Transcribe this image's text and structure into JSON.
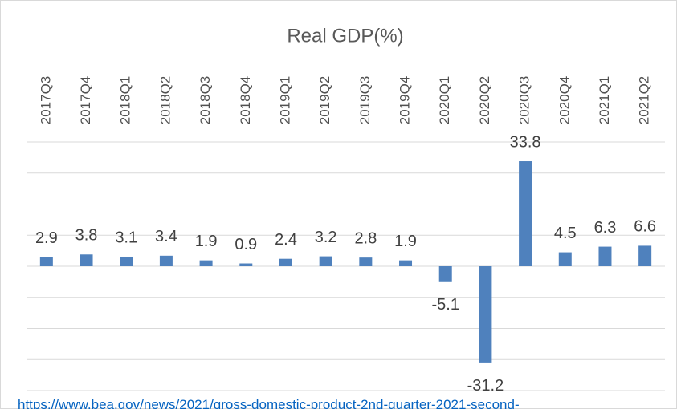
{
  "chart_data": {
    "type": "bar",
    "title": "Real GDP(%)",
    "categories": [
      "2017Q3",
      "2017Q4",
      "2018Q1",
      "2018Q2",
      "2018Q3",
      "2018Q4",
      "2019Q1",
      "2019Q2",
      "2019Q3",
      "2019Q4",
      "2020Q1",
      "2020Q2",
      "2020Q3",
      "2020Q4",
      "2021Q1",
      "2021Q2"
    ],
    "values": [
      2.9,
      3.8,
      3.1,
      3.4,
      1.9,
      0.9,
      2.4,
      3.2,
      2.8,
      1.9,
      -5.1,
      -31.2,
      33.8,
      4.5,
      6.3,
      6.6
    ],
    "color": "#4f81bd",
    "ylim": [
      -40,
      40
    ],
    "yticks": [
      -40,
      -30,
      -20,
      -10,
      0,
      10,
      20,
      30,
      40
    ],
    "grid": true,
    "source": "https://www.bea.gov/news/2021/gross-domestic-product-2nd-quarter-2021-second-"
  }
}
